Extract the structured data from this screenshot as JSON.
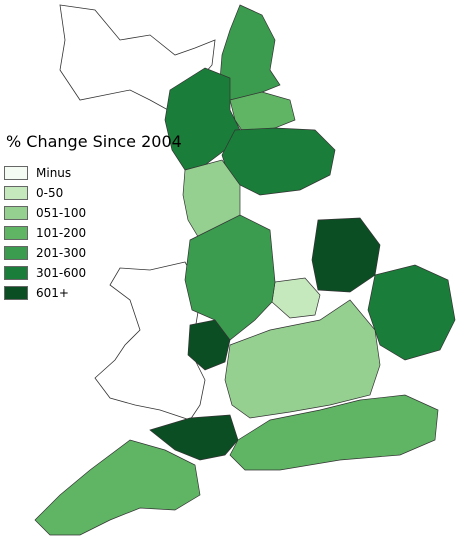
{
  "legend": {
    "title": "% Change Since 2004",
    "items": [
      {
        "label": "Minus",
        "color": "#f4fbf2"
      },
      {
        "label": "0-50",
        "color": "#c5e8bd"
      },
      {
        "label": "051-100",
        "color": "#95d091"
      },
      {
        "label": "101-200",
        "color": "#5fb564"
      },
      {
        "label": "201-300",
        "color": "#3b9b4f"
      },
      {
        "label": "301-600",
        "color": "#1b7d3a"
      },
      {
        "label": "601+",
        "color": "#0b4e24"
      }
    ]
  },
  "map": {
    "regions": [
      {
        "class": 4,
        "name": "northumberland"
      },
      {
        "class": 5,
        "name": "cumbria"
      },
      {
        "class": 3,
        "name": "durham"
      },
      {
        "class": 5,
        "name": "north-yorkshire"
      },
      {
        "class": 2,
        "name": "lancashire"
      },
      {
        "class": 6,
        "name": "lincolnshire"
      },
      {
        "class": 5,
        "name": "norfolk-suffolk"
      },
      {
        "class": 6,
        "name": "herefordshire"
      },
      {
        "class": 6,
        "name": "somerset-devon"
      },
      {
        "class": 1,
        "name": "leicester"
      },
      {
        "class": 0,
        "name": "cambridge"
      },
      {
        "class": 3,
        "name": "cornwall-devon"
      },
      {
        "class": 4,
        "name": "midlands"
      },
      {
        "class": 3,
        "name": "south-east"
      },
      {
        "class": 2,
        "name": "london-area"
      }
    ]
  }
}
